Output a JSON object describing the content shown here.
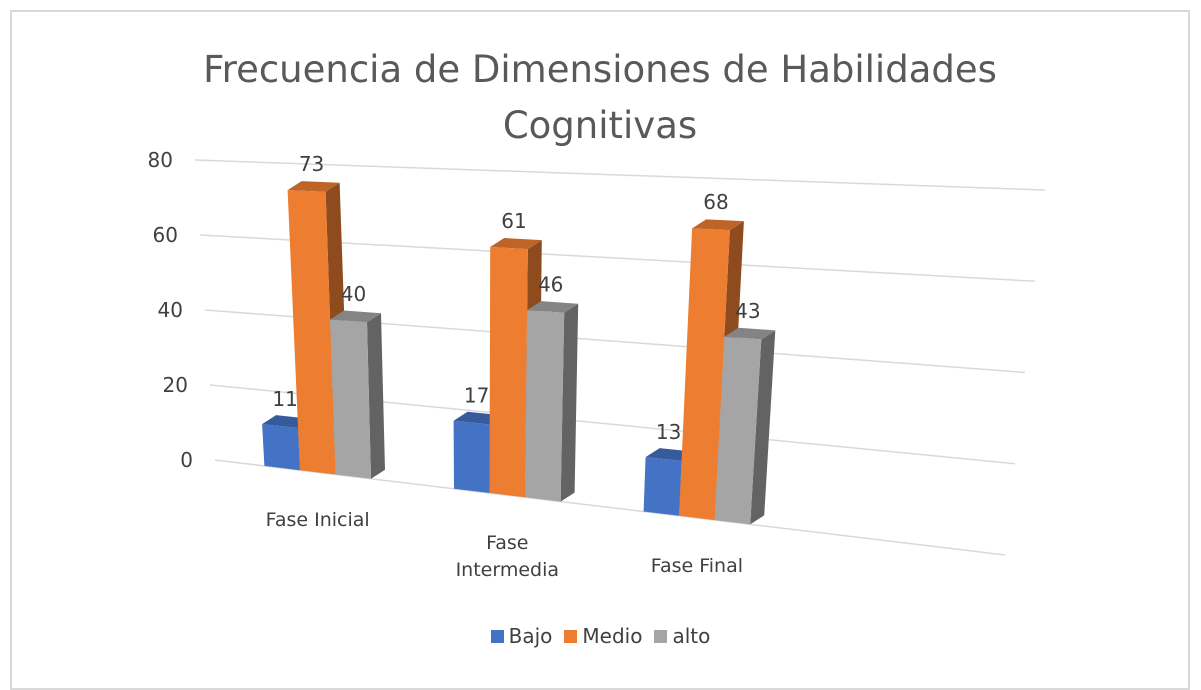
{
  "chart_data": {
    "type": "bar3d",
    "title": "Frecuencia de Dimensiones de Habilidades Cognitivas",
    "categories": [
      "Fase Inicial",
      "Fase Intermedia",
      "Fase Final"
    ],
    "series": [
      {
        "name": "Bajo",
        "color": "#4472c4",
        "values": [
          11,
          17,
          13
        ]
      },
      {
        "name": "Medio",
        "color": "#ed7d31",
        "values": [
          73,
          61,
          68
        ]
      },
      {
        "name": "alto",
        "color": "#a5a5a5",
        "values": [
          40,
          46,
          43
        ]
      }
    ],
    "ylim": [
      0,
      80
    ],
    "yticks": [
      0,
      20,
      40,
      60,
      80
    ],
    "grid": true,
    "legend": "bottom"
  }
}
